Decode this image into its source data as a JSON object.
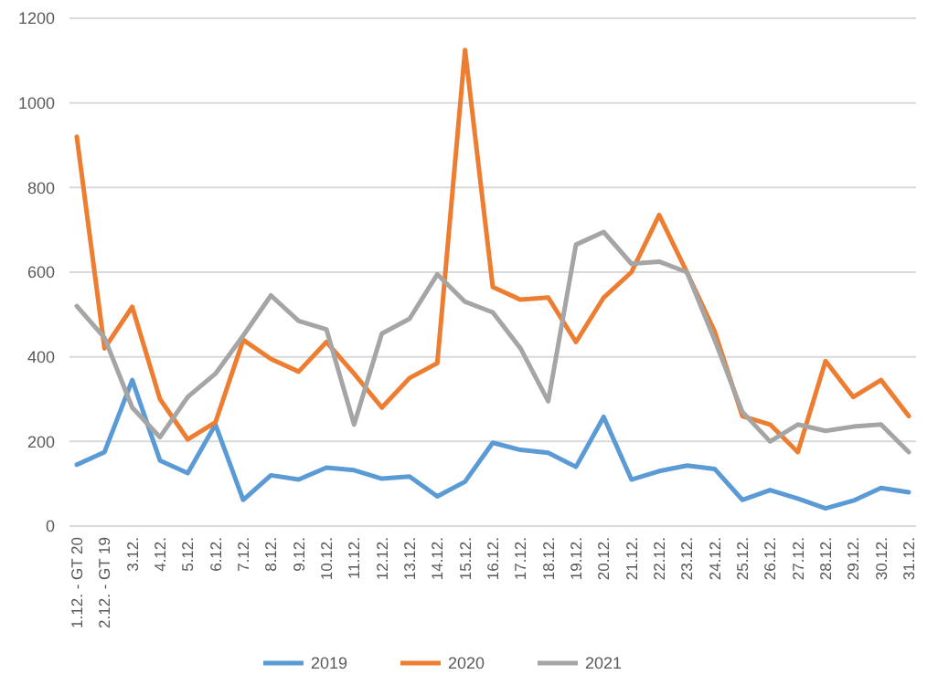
{
  "chart_data": {
    "type": "line",
    "categories": [
      "1.12. - GT 20",
      "2.12. - GT 19",
      "3.12.",
      "4.12.",
      "5.12.",
      "6.12.",
      "7.12.",
      "8.12.",
      "9.12.",
      "10.12.",
      "11.12.",
      "12.12.",
      "13.12.",
      "14.12.",
      "15.12.",
      "16.12.",
      "17.12.",
      "18.12.",
      "19.12.",
      "20.12.",
      "21.12.",
      "22.12.",
      "23.12.",
      "24.12.",
      "25.12.",
      "26.12.",
      "27.12.",
      "28.12.",
      "29.12.",
      "30.12.",
      "31.12."
    ],
    "series": [
      {
        "name": "2019",
        "color": "#5b9bd5",
        "values": [
          145,
          175,
          345,
          155,
          125,
          240,
          62,
          120,
          110,
          138,
          132,
          112,
          117,
          70,
          105,
          197,
          180,
          173,
          140,
          258,
          110,
          130,
          143,
          135,
          62,
          85,
          65,
          42,
          60,
          90,
          80
        ]
      },
      {
        "name": "2020",
        "color": "#ed7d31",
        "values": [
          920,
          420,
          518,
          300,
          205,
          245,
          440,
          395,
          365,
          435,
          360,
          280,
          350,
          385,
          1125,
          565,
          535,
          540,
          435,
          540,
          600,
          735,
          600,
          460,
          260,
          240,
          175,
          390,
          305,
          345,
          260
        ]
      },
      {
        "name": "2021",
        "color": "#a5a5a5",
        "values": [
          520,
          445,
          280,
          210,
          305,
          360,
          450,
          545,
          485,
          465,
          240,
          455,
          490,
          595,
          530,
          505,
          420,
          295,
          665,
          695,
          620,
          625,
          600,
          440,
          270,
          200,
          240,
          225,
          235,
          240,
          175
        ]
      }
    ],
    "ylim": [
      0,
      1200
    ],
    "yticks": [
      0,
      200,
      400,
      600,
      800,
      1000,
      1200
    ],
    "grid": "y",
    "legend": "bottom",
    "marker": "none",
    "line_style": "solid"
  }
}
